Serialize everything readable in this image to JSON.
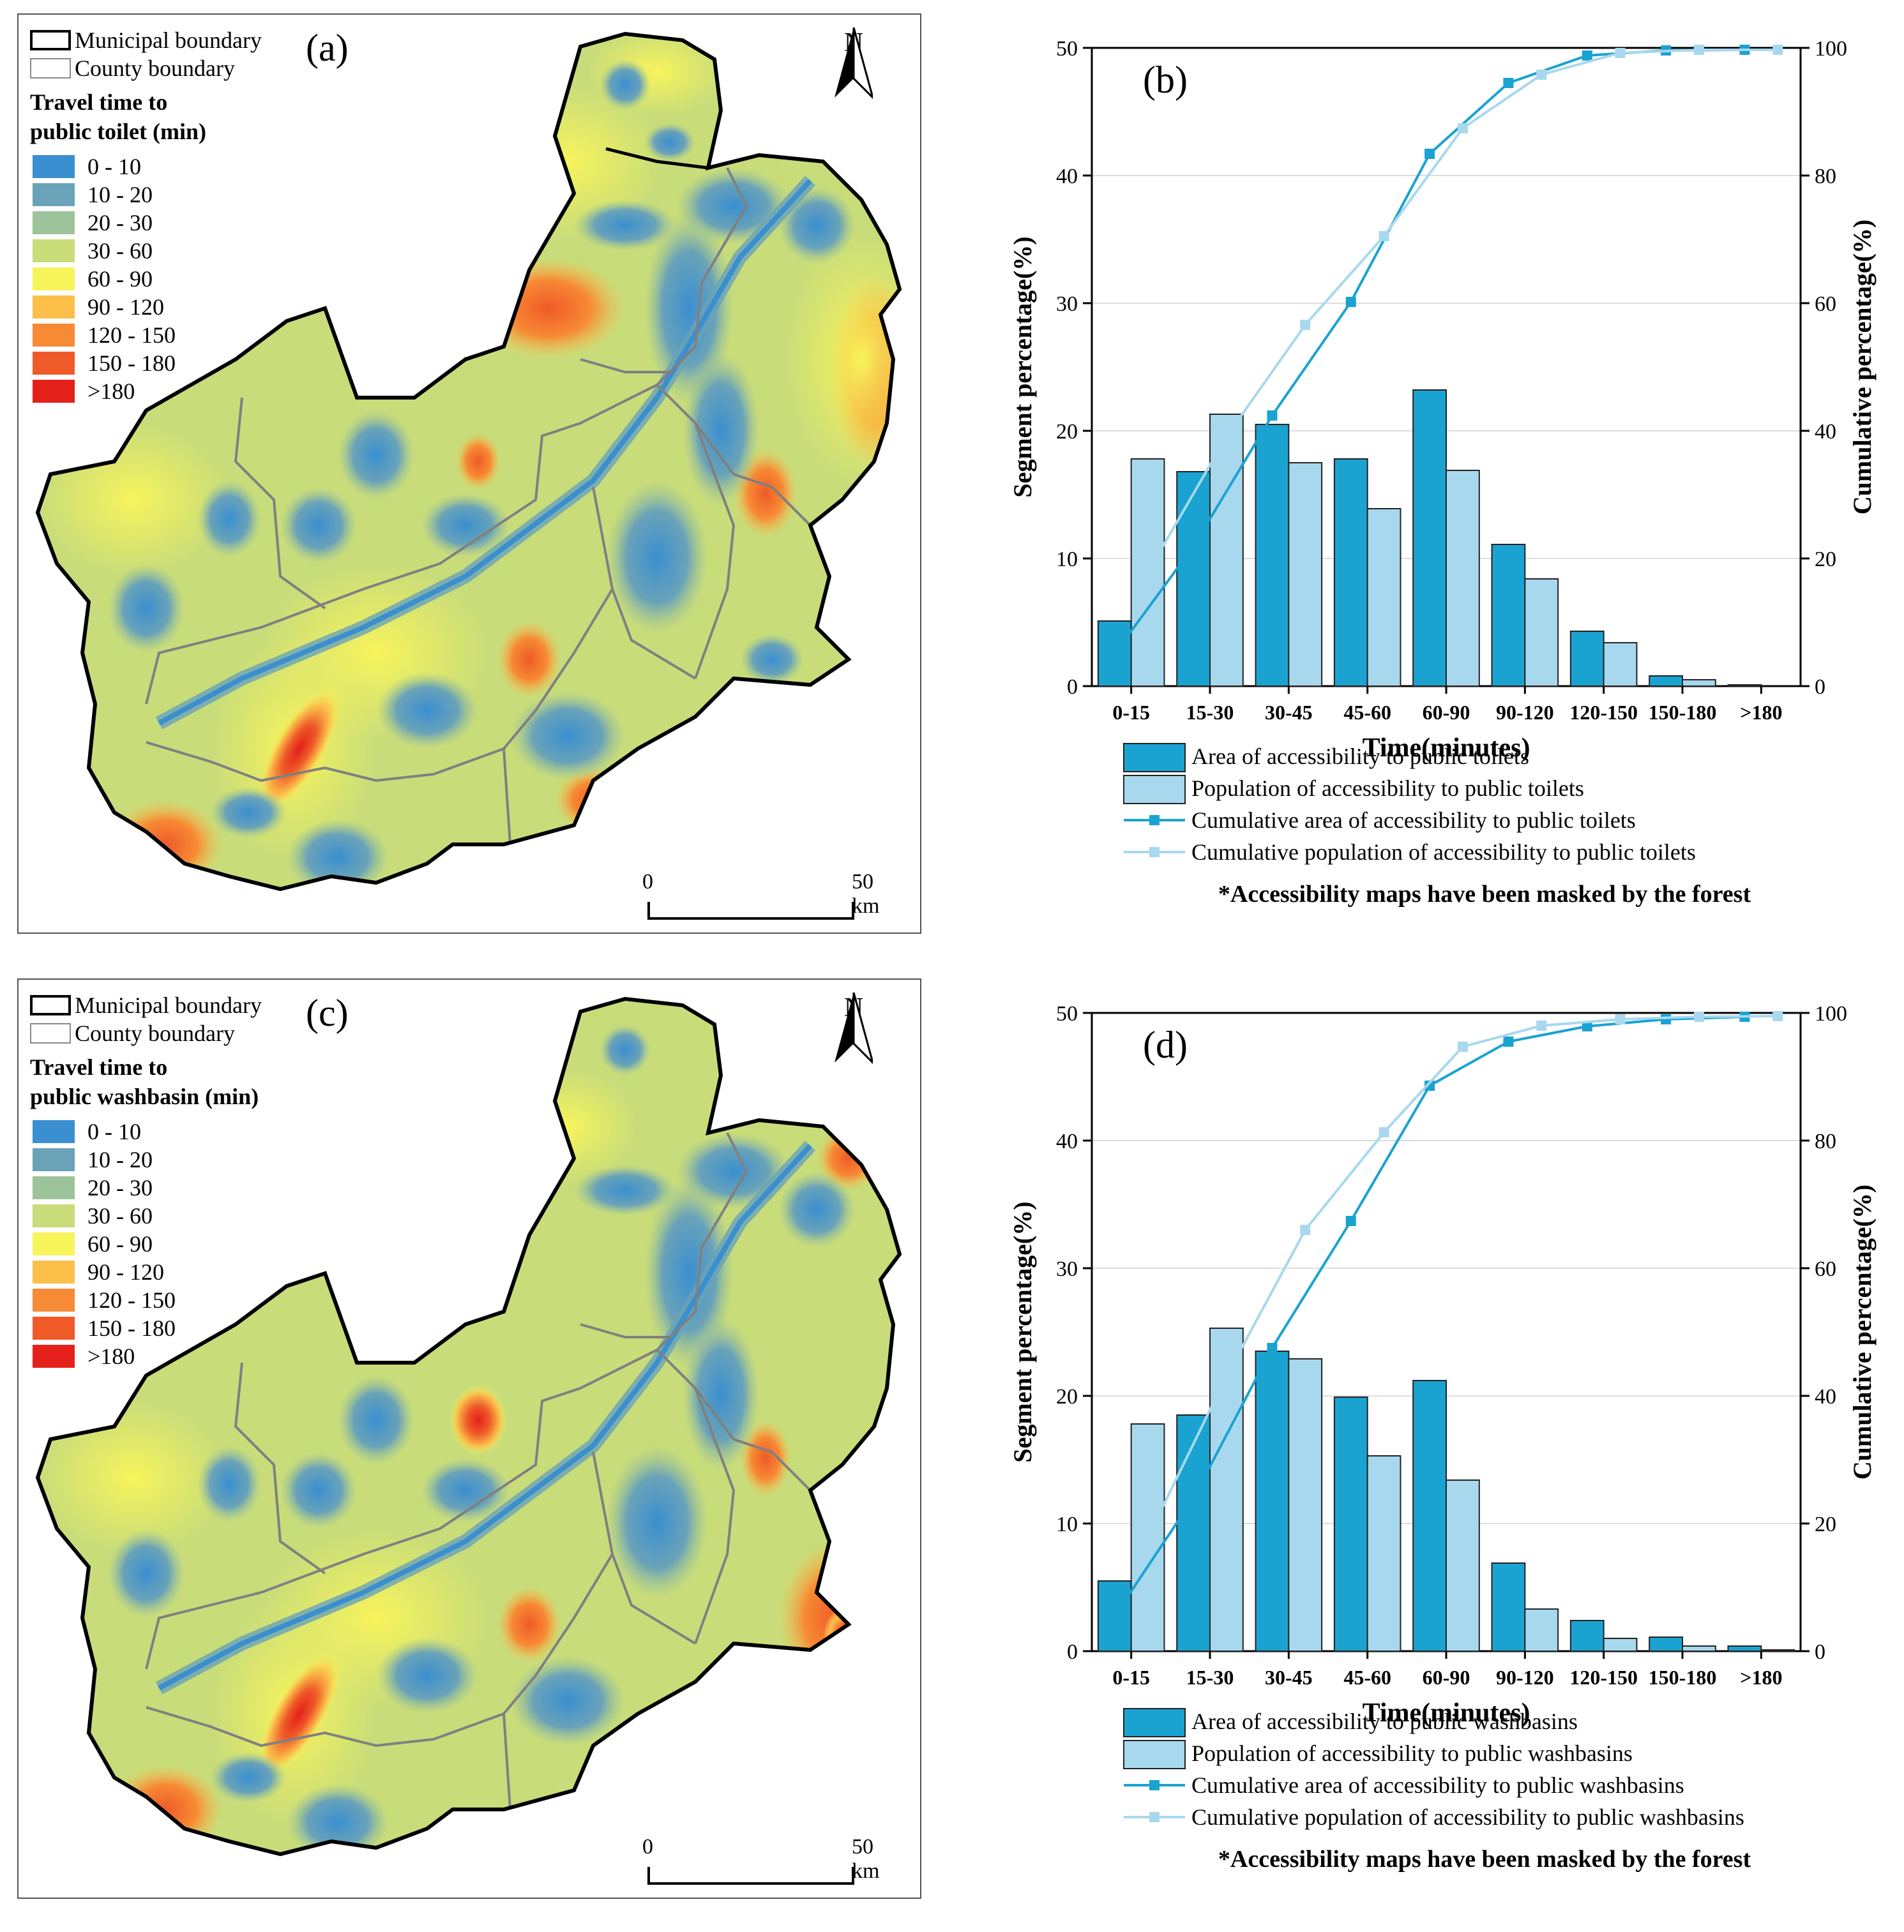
{
  "legend_common": {
    "municipal": "Municipal boundary",
    "county": "County boundary",
    "classes": [
      {
        "label": "0 - 10",
        "color": "#3a8fd0"
      },
      {
        "label": "10 - 20",
        "color": "#6aa3b8"
      },
      {
        "label": "20 - 30",
        "color": "#9cc39a"
      },
      {
        "label": "30 - 60",
        "color": "#c8dc7a"
      },
      {
        "label": "60 - 90",
        "color": "#f7f45c"
      },
      {
        "label": "90 - 120",
        "color": "#fbbf4a"
      },
      {
        "label": "120 - 150",
        "color": "#f78a34"
      },
      {
        "label": "150 - 180",
        "color": "#ef5a28"
      },
      {
        "label": ">180",
        "color": "#e3201a"
      }
    ]
  },
  "map_a": {
    "label": "(a)",
    "title_line1": "Travel time to",
    "title_line2": "public toilet (min)",
    "north": "N",
    "scale_start": "0",
    "scale_end": "50 km"
  },
  "map_c": {
    "label": "(c)",
    "title_line1": "Travel time to",
    "title_line2": "public washbasin (min)",
    "north": "N",
    "scale_start": "0",
    "scale_end": "50 km"
  },
  "colors": {
    "area_bar": "#1aa3d1",
    "pop_bar": "#a8d8ee",
    "area_line": "#1aa3d1",
    "pop_line": "#a8d8ee"
  },
  "chart_data": [
    {
      "type": "bar",
      "panel": "(b)",
      "categories": [
        "0-15",
        "15-30",
        "30-45",
        "45-60",
        "60-90",
        "90-120",
        "120-150",
        "150-180",
        ">180"
      ],
      "xlabel": "Time(minutes)",
      "ylabel": "Segment percentage(%)",
      "y2label": "Cumulative percentage(%)",
      "ylim": [
        0,
        50
      ],
      "yticks": [
        "0",
        "10",
        "20",
        "30",
        "40",
        "50"
      ],
      "y2lim": [
        0,
        100
      ],
      "y2ticks": [
        "0",
        "20",
        "40",
        "60",
        "80",
        "100"
      ],
      "series": [
        {
          "name": "Area of accessibility to public toilets",
          "kind": "bar",
          "values": [
            5.1,
            16.8,
            20.5,
            17.8,
            23.2,
            11.1,
            4.3,
            0.8,
            0.1
          ]
        },
        {
          "name": "Population of accessibility to public toilets",
          "kind": "bar",
          "values": [
            17.8,
            21.3,
            17.5,
            13.9,
            16.9,
            8.4,
            3.4,
            0.5,
            0.0
          ]
        },
        {
          "name": "Cumulative area of accessibility to public toilets",
          "kind": "line",
          "values": [
            5.1,
            21.9,
            42.4,
            60.2,
            83.4,
            94.5,
            98.8,
            99.6,
            99.7
          ]
        },
        {
          "name": "Cumulative population of accessibility to public toilets",
          "kind": "line",
          "values": [
            17.8,
            39.1,
            56.6,
            70.5,
            87.4,
            95.8,
            99.2,
            99.7,
            99.7
          ]
        }
      ],
      "note": "*Accessibility maps have been masked by the forest"
    },
    {
      "type": "bar",
      "panel": "(d)",
      "categories": [
        "0-15",
        "15-30",
        "30-45",
        "45-60",
        "60-90",
        "90-120",
        "120-150",
        "150-180",
        ">180"
      ],
      "xlabel": "Time(minutes)",
      "ylabel": "Segment percentage(%)",
      "y2label": "Cumulative percentage(%)",
      "ylim": [
        0,
        50
      ],
      "yticks": [
        "0",
        "10",
        "20",
        "30",
        "40",
        "50"
      ],
      "y2lim": [
        0,
        100
      ],
      "y2ticks": [
        "0",
        "20",
        "40",
        "60",
        "80",
        "100"
      ],
      "series": [
        {
          "name": "Area of accessibility to public washbasins",
          "kind": "bar",
          "values": [
            5.5,
            18.5,
            23.5,
            19.9,
            21.2,
            6.9,
            2.4,
            1.1,
            0.4
          ]
        },
        {
          "name": "Population of accessibility to public washbasins",
          "kind": "bar",
          "values": [
            17.8,
            25.3,
            22.9,
            15.3,
            13.4,
            3.3,
            1.0,
            0.4,
            0.1
          ]
        },
        {
          "name": "Cumulative area of accessibility to public washbasins",
          "kind": "line",
          "values": [
            5.5,
            24.0,
            47.5,
            67.4,
            88.6,
            95.5,
            97.9,
            99.0,
            99.4
          ]
        },
        {
          "name": "Cumulative population of accessibility to public washbasins",
          "kind": "line",
          "values": [
            17.8,
            43.1,
            66.0,
            81.3,
            94.7,
            98.0,
            99.0,
            99.4,
            99.5
          ]
        }
      ],
      "note": "*Accessibility maps have been masked by the forest"
    }
  ]
}
